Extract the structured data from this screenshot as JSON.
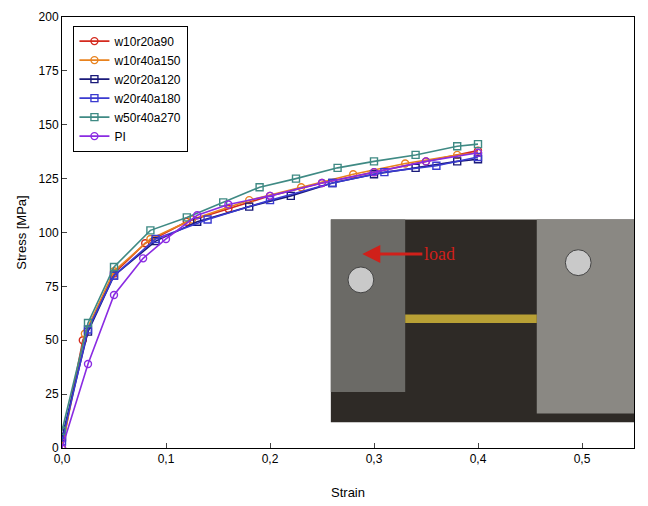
{
  "chart_data": {
    "type": "line",
    "x_label": "Strain",
    "y_label": "Stress [MPa]",
    "xlim": [
      0,
      0.55
    ],
    "xticks": [
      {
        "value": 0,
        "label": "0,0"
      },
      {
        "value": 0.1,
        "label": "0,1"
      },
      {
        "value": 0.2,
        "label": "0,2"
      },
      {
        "value": 0.3,
        "label": "0,3"
      },
      {
        "value": 0.4,
        "label": "0,4"
      },
      {
        "value": 0.5,
        "label": "0,5"
      }
    ],
    "ylim": [
      0,
      200
    ],
    "yticks": [
      0,
      25,
      50,
      75,
      100,
      125,
      150,
      175,
      200
    ],
    "grid": false,
    "legend": "top-left",
    "annotations": [
      {
        "text": "load",
        "color": "#d0201a"
      }
    ],
    "series": [
      {
        "name": "w10r20a90",
        "color": "#d42a1e",
        "marker": "circle-open",
        "line_style": "solid",
        "x": [
          0,
          0.02,
          0.05,
          0.08,
          0.12,
          0.16,
          0.2,
          0.25,
          0.3,
          0.35,
          0.4
        ],
        "values": [
          0,
          50,
          81,
          95,
          105,
          111,
          117,
          123,
          128,
          133,
          138
        ]
      },
      {
        "name": "w10r40a150",
        "color": "#e8821e",
        "marker": "circle-open",
        "line_style": "solid",
        "x": [
          0,
          0.022,
          0.05,
          0.085,
          0.125,
          0.18,
          0.23,
          0.28,
          0.33,
          0.38,
          0.4
        ],
        "values": [
          0,
          53,
          82,
          97,
          106,
          115,
          121,
          127,
          132,
          136,
          137
        ]
      },
      {
        "name": "w20r20a120",
        "color": "#1a1a7a",
        "marker": "square-open",
        "line_style": "solid",
        "x": [
          0,
          0.025,
          0.05,
          0.09,
          0.13,
          0.18,
          0.22,
          0.26,
          0.3,
          0.34,
          0.38,
          0.4
        ],
        "values": [
          5,
          54,
          80,
          96,
          105,
          112,
          117,
          123,
          127,
          130,
          133,
          134
        ]
      },
      {
        "name": "w20r40a180",
        "color": "#3a3ad0",
        "marker": "square-open",
        "line_style": "solid",
        "x": [
          0,
          0.025,
          0.05,
          0.09,
          0.14,
          0.2,
          0.26,
          0.31,
          0.36,
          0.4
        ],
        "values": [
          3,
          55,
          80,
          97,
          106,
          115,
          123,
          128,
          131,
          135
        ]
      },
      {
        "name": "w50r40a270",
        "color": "#3f8a84",
        "marker": "square-open",
        "line_style": "solid",
        "x": [
          0,
          0.025,
          0.05,
          0.085,
          0.12,
          0.155,
          0.19,
          0.225,
          0.265,
          0.3,
          0.34,
          0.38,
          0.4
        ],
        "values": [
          8,
          58,
          84,
          101,
          107,
          114,
          121,
          125,
          130,
          133,
          136,
          140,
          141
        ]
      },
      {
        "name": "PI",
        "color": "#8a2be2",
        "marker": "circle-open",
        "line_style": "solid",
        "x": [
          0,
          0.025,
          0.05,
          0.078,
          0.1,
          0.13,
          0.16,
          0.2,
          0.25,
          0.3,
          0.35,
          0.4
        ],
        "values": [
          0,
          39,
          71,
          88,
          97,
          108,
          113,
          117,
          123,
          128,
          133,
          137
        ]
      }
    ]
  }
}
